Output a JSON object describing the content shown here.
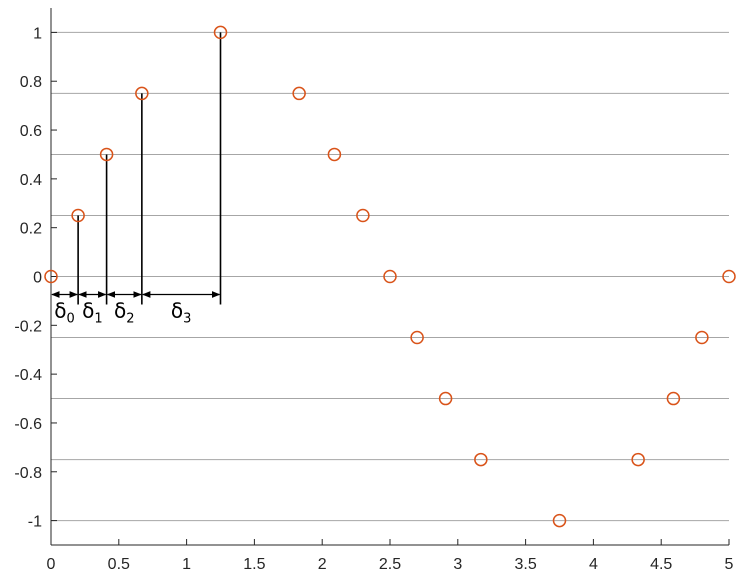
{
  "chart_data": {
    "type": "scatter",
    "title": "",
    "xlabel": "",
    "ylabel": "",
    "xlim": [
      0,
      5
    ],
    "ylim": [
      -1.1,
      1.1
    ],
    "x_ticks": [
      {
        "v": 0,
        "label": "0"
      },
      {
        "v": 0.5,
        "label": "0.5"
      },
      {
        "v": 1,
        "label": "1"
      },
      {
        "v": 1.5,
        "label": "1.5"
      },
      {
        "v": 2,
        "label": "2"
      },
      {
        "v": 2.5,
        "label": "2.5"
      },
      {
        "v": 3,
        "label": "3"
      },
      {
        "v": 3.5,
        "label": "3.5"
      },
      {
        "v": 4,
        "label": "4"
      },
      {
        "v": 4.5,
        "label": "4.5"
      },
      {
        "v": 5,
        "label": "5"
      }
    ],
    "y_ticks": [
      {
        "v": 1,
        "label": "1"
      },
      {
        "v": 0.8,
        "label": "0.8"
      },
      {
        "v": 0.6,
        "label": "0.6"
      },
      {
        "v": 0.4,
        "label": "0.4"
      },
      {
        "v": 0.2,
        "label": "0.2"
      },
      {
        "v": 0,
        "label": "0"
      },
      {
        "v": -0.2,
        "label": "-0.2"
      },
      {
        "v": -0.4,
        "label": "-0.4"
      },
      {
        "v": -0.6,
        "label": "-0.6"
      },
      {
        "v": -0.8,
        "label": "-0.8"
      },
      {
        "v": -1,
        "label": "-1"
      }
    ],
    "gridlines_y": [
      1,
      0.75,
      0.5,
      0.25,
      0,
      -0.25,
      -0.5,
      -0.75,
      -1
    ],
    "grid": true,
    "series": [
      {
        "marker": "open-circle",
        "color": "#D95319",
        "points": [
          {
            "x": 0,
            "y": 0
          },
          {
            "x": 0.2,
            "y": 0.25
          },
          {
            "x": 0.41,
            "y": 0.5
          },
          {
            "x": 0.67,
            "y": 0.75
          },
          {
            "x": 1.25,
            "y": 1
          },
          {
            "x": 1.83,
            "y": 0.75
          },
          {
            "x": 2.09,
            "y": 0.5
          },
          {
            "x": 2.3,
            "y": 0.25
          },
          {
            "x": 2.5,
            "y": 0
          },
          {
            "x": 2.7,
            "y": -0.25
          },
          {
            "x": 2.91,
            "y": -0.5
          },
          {
            "x": 3.17,
            "y": -0.75
          },
          {
            "x": 3.75,
            "y": -1
          },
          {
            "x": 4.33,
            "y": -0.75
          },
          {
            "x": 4.59,
            "y": -0.5
          },
          {
            "x": 4.8,
            "y": -0.25
          },
          {
            "x": 5,
            "y": 0
          }
        ]
      }
    ],
    "stems": [
      {
        "x": 0.2,
        "y": 0.25
      },
      {
        "x": 0.41,
        "y": 0.5
      },
      {
        "x": 0.67,
        "y": 0.75
      },
      {
        "x": 1.25,
        "y": 1
      }
    ],
    "intervals": [
      {
        "x0": 0,
        "x1": 0.2,
        "symbol": "δ",
        "subscript": "0"
      },
      {
        "x0": 0.2,
        "x1": 0.41,
        "symbol": "δ",
        "subscript": "1"
      },
      {
        "x0": 0.41,
        "x1": 0.67,
        "symbol": "δ",
        "subscript": "2"
      },
      {
        "x0": 0.67,
        "x1": 1.25,
        "symbol": "δ",
        "subscript": "3"
      }
    ],
    "colors": {
      "marker": "#D95319",
      "grid": "#a6a6a6",
      "axis": "#262626",
      "annotation": "#000000"
    }
  }
}
